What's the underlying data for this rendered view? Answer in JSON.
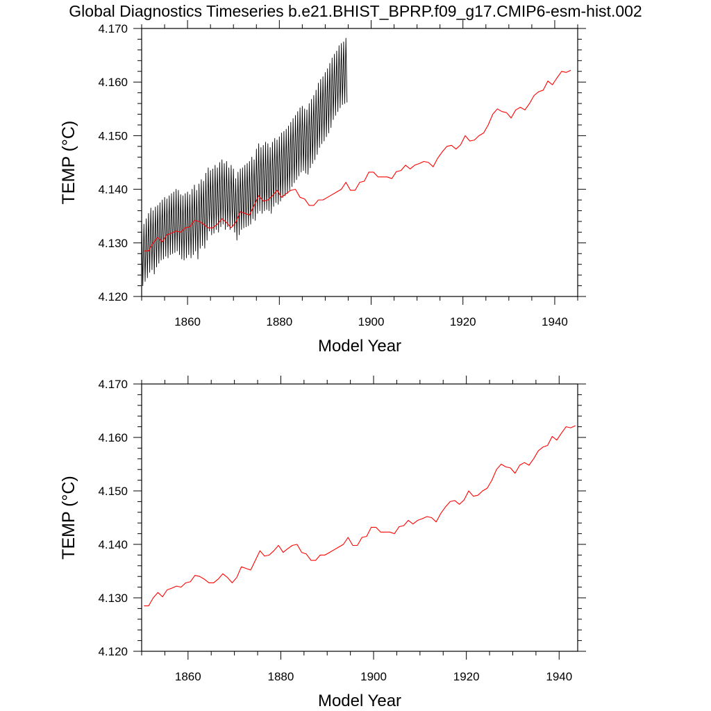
{
  "title": "Global Diagnostics Timeseries b.e21.BHIST_BPRP.f09_g17.CMIP6-esm-hist.002",
  "colors": {
    "monthly": "#000000",
    "annual": "#ff0000"
  },
  "chart_data": [
    {
      "type": "line",
      "xlabel": "Model Year",
      "ylabel": "TEMP (°C)",
      "xlim": [
        1850,
        1945
      ],
      "ylim": [
        4.12,
        4.17
      ],
      "xticks": [
        "1860",
        "1880",
        "1900",
        "1920",
        "1940"
      ],
      "yticks": [
        "4.120",
        "4.130",
        "4.140",
        "4.150",
        "4.160",
        "4.170"
      ],
      "grid": false,
      "series": [
        {
          "kind": "monthly",
          "x_start": 1850.0,
          "x_step": 0.25,
          "values": [
            4.134,
            4.122,
            4.1335,
            4.1228,
            4.1345,
            4.1235,
            4.1355,
            4.1245,
            4.1365,
            4.125,
            4.136,
            4.1242,
            4.1367,
            4.1255,
            4.137,
            4.1262,
            4.1375,
            4.1268,
            4.138,
            4.127,
            4.1385,
            4.1275,
            4.1382,
            4.1272,
            4.1388,
            4.1278,
            4.1392,
            4.128,
            4.1395,
            4.1282,
            4.14,
            4.1285,
            4.1398,
            4.1278,
            4.139,
            4.127,
            4.1388,
            4.1268,
            4.1392,
            4.1272,
            4.1395,
            4.1278,
            4.139,
            4.1272,
            4.14,
            4.1278,
            4.1408,
            4.1285,
            4.1398,
            4.127,
            4.141,
            4.129,
            4.1418,
            4.1295,
            4.1415,
            4.129,
            4.143,
            4.1305,
            4.144,
            4.1322,
            4.1435,
            4.1315,
            4.1438,
            4.1318,
            4.1445,
            4.1325,
            4.144,
            4.132,
            4.145,
            4.133,
            4.1455,
            4.1335,
            4.1448,
            4.1325,
            4.1452,
            4.133,
            4.144,
            4.1325,
            4.1445,
            4.133,
            4.1438,
            4.132,
            4.142,
            4.1305,
            4.1432,
            4.1315,
            4.1438,
            4.1325,
            4.144,
            4.1328,
            4.1445,
            4.133,
            4.1448,
            4.1332,
            4.1452,
            4.1335,
            4.146,
            4.1345,
            4.1455,
            4.1342,
            4.1475,
            4.1355,
            4.1485,
            4.136,
            4.1478,
            4.1355,
            4.1482,
            4.136,
            4.1488,
            4.1362,
            4.1485,
            4.136,
            4.1478,
            4.1355,
            4.1488,
            4.1368,
            4.1495,
            4.1375,
            4.1492,
            4.1372,
            4.1498,
            4.1378,
            4.1505,
            4.1385,
            4.1508,
            4.1388,
            4.1512,
            4.1392,
            4.1518,
            4.1398,
            4.1525,
            4.1405,
            4.1532,
            4.1412,
            4.1538,
            4.1418,
            4.1545,
            4.1425,
            4.1552,
            4.1432,
            4.1555,
            4.1435,
            4.155,
            4.143,
            4.1548,
            4.1428,
            4.156,
            4.144,
            4.1568,
            4.1448,
            4.1575,
            4.1455,
            4.1585,
            4.1465,
            4.1598,
            4.1478,
            4.1605,
            4.1485,
            4.161,
            4.149,
            4.1618,
            4.1498,
            4.1625,
            4.1505,
            4.1635,
            4.1515,
            4.1645,
            4.153,
            4.1652,
            4.1538,
            4.1658,
            4.1545,
            4.1668,
            4.1552,
            4.1672,
            4.1558,
            4.1675,
            4.156,
            4.1682,
            4.1562
          ]
        },
        {
          "kind": "annual",
          "x": [
            1850.5,
            1851.5,
            1852.5,
            1853.5,
            1854.5,
            1855.5,
            1856.5,
            1857.5,
            1858.5,
            1859.5,
            1860.5,
            1861.5,
            1862.5,
            1863.5,
            1864.5,
            1865.5,
            1866.5,
            1867.5,
            1868.5,
            1869.5,
            1870.5,
            1871.5,
            1872.5,
            1873.5,
            1874.5,
            1875.5,
            1876.5,
            1877.5,
            1878.5,
            1879.5,
            1880.5,
            1881.5,
            1882.5,
            1883.5,
            1884.5,
            1885.5,
            1886.5,
            1887.5,
            1888.5,
            1889.5,
            1890.5,
            1891.5,
            1892.5,
            1893.5,
            1894.5,
            1895.5,
            1896.5,
            1897.5,
            1898.5,
            1899.5,
            1900.5,
            1901.5,
            1902.5,
            1903.5,
            1904.5,
            1905.5,
            1906.5,
            1907.5,
            1908.5,
            1909.5,
            1910.5,
            1911.5,
            1912.5,
            1913.5,
            1914.5,
            1915.5,
            1916.5,
            1917.5,
            1918.5,
            1919.5,
            1920.5,
            1921.5,
            1922.5,
            1923.5,
            1924.5,
            1925.5,
            1926.5,
            1927.5,
            1928.5,
            1929.5,
            1930.5,
            1931.5,
            1932.5,
            1933.5,
            1934.5,
            1935.5,
            1936.5,
            1937.5,
            1938.5,
            1939.5,
            1940.5,
            1941.5,
            1942.5,
            1943.5
          ],
          "values": [
            4.1285,
            4.1285,
            4.13,
            4.131,
            4.1302,
            4.1315,
            4.1318,
            4.1322,
            4.132,
            4.1328,
            4.133,
            4.1342,
            4.134,
            4.1335,
            4.1328,
            4.1328,
            4.1335,
            4.1345,
            4.1338,
            4.1328,
            4.1338,
            4.1358,
            4.1355,
            4.1352,
            4.137,
            4.1388,
            4.1378,
            4.138,
            4.1388,
            4.1398,
            4.1385,
            4.1392,
            4.1398,
            4.14,
            4.1385,
            4.1382,
            4.137,
            4.137,
            4.138,
            4.138,
            4.1385,
            4.139,
            4.1395,
            4.14,
            4.1413,
            4.1398,
            4.1398,
            4.1413,
            4.1415,
            4.1432,
            4.1432,
            4.1423,
            4.1423,
            4.1423,
            4.142,
            4.1433,
            4.1435,
            4.1445,
            4.1438,
            4.1445,
            4.1448,
            4.1452,
            4.145,
            4.1442,
            4.1458,
            4.147,
            4.148,
            4.1482,
            4.1475,
            4.1483,
            4.15,
            4.149,
            4.1492,
            4.15,
            4.1505,
            4.152,
            4.154,
            4.155,
            4.1545,
            4.1543,
            4.1533,
            4.1548,
            4.1553,
            4.1548,
            4.156,
            4.1575,
            4.1582,
            4.1585,
            4.1602,
            4.1595,
            4.1608,
            4.162,
            4.1618,
            4.1622
          ]
        }
      ]
    },
    {
      "type": "line",
      "xlabel": "Model Year",
      "ylabel": "TEMP (°C)",
      "xlim": [
        1850,
        1944
      ],
      "ylim": [
        4.12,
        4.17
      ],
      "xticks": [
        "1860",
        "1880",
        "1900",
        "1920",
        "1940"
      ],
      "yticks": [
        "4.120",
        "4.130",
        "4.140",
        "4.150",
        "4.160",
        "4.170"
      ],
      "grid": false,
      "series": [
        {
          "kind": "annual",
          "x": [
            1850.5,
            1851.5,
            1852.5,
            1853.5,
            1854.5,
            1855.5,
            1856.5,
            1857.5,
            1858.5,
            1859.5,
            1860.5,
            1861.5,
            1862.5,
            1863.5,
            1864.5,
            1865.5,
            1866.5,
            1867.5,
            1868.5,
            1869.5,
            1870.5,
            1871.5,
            1872.5,
            1873.5,
            1874.5,
            1875.5,
            1876.5,
            1877.5,
            1878.5,
            1879.5,
            1880.5,
            1881.5,
            1882.5,
            1883.5,
            1884.5,
            1885.5,
            1886.5,
            1887.5,
            1888.5,
            1889.5,
            1890.5,
            1891.5,
            1892.5,
            1893.5,
            1894.5,
            1895.5,
            1896.5,
            1897.5,
            1898.5,
            1899.5,
            1900.5,
            1901.5,
            1902.5,
            1903.5,
            1904.5,
            1905.5,
            1906.5,
            1907.5,
            1908.5,
            1909.5,
            1910.5,
            1911.5,
            1912.5,
            1913.5,
            1914.5,
            1915.5,
            1916.5,
            1917.5,
            1918.5,
            1919.5,
            1920.5,
            1921.5,
            1922.5,
            1923.5,
            1924.5,
            1925.5,
            1926.5,
            1927.5,
            1928.5,
            1929.5,
            1930.5,
            1931.5,
            1932.5,
            1933.5,
            1934.5,
            1935.5,
            1936.5,
            1937.5,
            1938.5,
            1939.5,
            1940.5,
            1941.5,
            1942.5,
            1943.5
          ],
          "values": [
            4.1285,
            4.1285,
            4.13,
            4.131,
            4.1302,
            4.1315,
            4.1318,
            4.1322,
            4.132,
            4.1328,
            4.133,
            4.1342,
            4.134,
            4.1335,
            4.1328,
            4.1328,
            4.1335,
            4.1345,
            4.1338,
            4.1328,
            4.1338,
            4.1358,
            4.1355,
            4.1352,
            4.137,
            4.1388,
            4.1378,
            4.138,
            4.1388,
            4.1398,
            4.1385,
            4.1392,
            4.1398,
            4.14,
            4.1385,
            4.1382,
            4.137,
            4.137,
            4.138,
            4.138,
            4.1385,
            4.139,
            4.1395,
            4.14,
            4.1413,
            4.1398,
            4.1398,
            4.1413,
            4.1415,
            4.1432,
            4.1432,
            4.1423,
            4.1423,
            4.1423,
            4.142,
            4.1433,
            4.1435,
            4.1445,
            4.1438,
            4.1445,
            4.1448,
            4.1452,
            4.145,
            4.1442,
            4.1458,
            4.147,
            4.148,
            4.1482,
            4.1475,
            4.1483,
            4.15,
            4.149,
            4.1492,
            4.15,
            4.1505,
            4.152,
            4.154,
            4.155,
            4.1545,
            4.1543,
            4.1533,
            4.1548,
            4.1553,
            4.1548,
            4.156,
            4.1575,
            4.1582,
            4.1585,
            4.1602,
            4.1595,
            4.1608,
            4.162,
            4.1618,
            4.1622
          ]
        }
      ]
    }
  ]
}
